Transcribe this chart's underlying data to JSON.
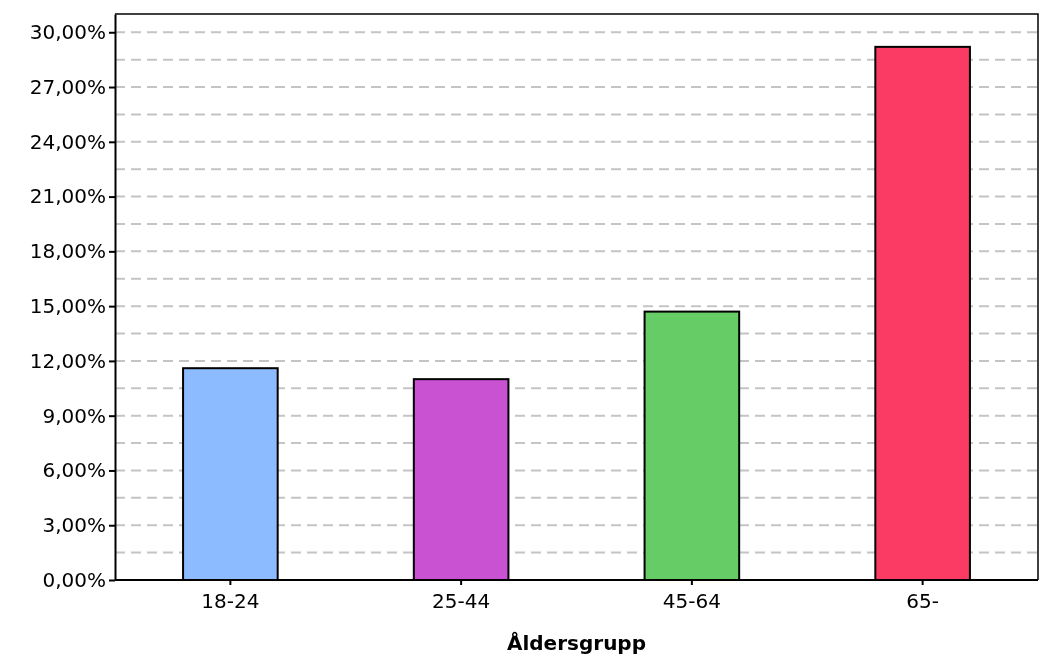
{
  "chart_data": {
    "type": "bar",
    "xlabel": "Åldersgrupp",
    "categories": [
      "18-24",
      "25-44",
      "45-64",
      "65-"
    ],
    "values": [
      11.6,
      11.0,
      14.7,
      29.2
    ],
    "colors": [
      "#8cbcff",
      "#c852d2",
      "#66cc66",
      "#fc3b64"
    ],
    "ylim": [
      0,
      31
    ],
    "yticks": [
      {
        "value": 0,
        "label": "0,00%"
      },
      {
        "value": 1.5,
        "label": null
      },
      {
        "value": 3,
        "label": "3,00%"
      },
      {
        "value": 4.5,
        "label": null
      },
      {
        "value": 6,
        "label": "6,00%"
      },
      {
        "value": 7.5,
        "label": null
      },
      {
        "value": 9,
        "label": "9,00%"
      },
      {
        "value": 10.5,
        "label": null
      },
      {
        "value": 12,
        "label": "12,00%"
      },
      {
        "value": 13.5,
        "label": null
      },
      {
        "value": 15,
        "label": "15,00%"
      },
      {
        "value": 16.5,
        "label": null
      },
      {
        "value": 18,
        "label": "18,00%"
      },
      {
        "value": 19.5,
        "label": null
      },
      {
        "value": 21,
        "label": "21,00%"
      },
      {
        "value": 22.5,
        "label": null
      },
      {
        "value": 24,
        "label": "24,00%"
      },
      {
        "value": 25.5,
        "label": null
      },
      {
        "value": 27,
        "label": "27,00%"
      },
      {
        "value": 28.5,
        "label": null
      },
      {
        "value": 30,
        "label": "30,00%"
      }
    ],
    "grid": true
  }
}
